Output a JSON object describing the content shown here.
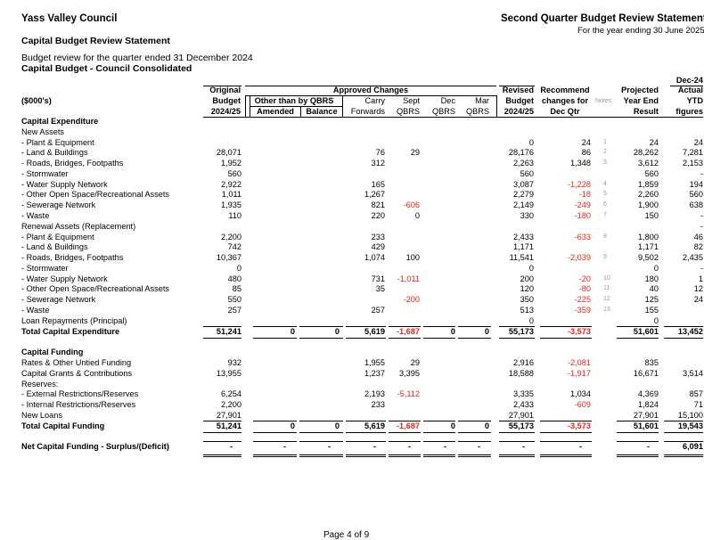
{
  "header": {
    "council": "Yass Valley Council",
    "statement_title": "Second Quarter Budget Review Statement",
    "year_ending": "For the year ending 30 June 2025",
    "section_title": "Capital Budget Review Statement",
    "quarter_text": "Budget review for the quarter ended 31 December 2024",
    "budget_name": "Capital Budget - Council Consolidated"
  },
  "columns": {
    "units": "($000's)",
    "original": [
      "Original",
      "Budget",
      "2024/25"
    ],
    "approved_changes": "Approved Changes",
    "other_than_qbrs": "Other than by QBRS",
    "amended": "Amended",
    "balance": "Balance",
    "carry": [
      "Carry",
      "Forwards"
    ],
    "sept": [
      "Sept",
      "QBRS"
    ],
    "dec": [
      "Dec",
      "QBRS"
    ],
    "mar": [
      "Mar",
      "QBRS"
    ],
    "revised": [
      "Revised",
      "Budget",
      "2024/25"
    ],
    "recommend": [
      "Recommend",
      "changes for",
      "Dec Qtr"
    ],
    "notes": "Notes",
    "projected": [
      "Projected",
      "Year End",
      "Result"
    ],
    "actual": [
      "Dec-24",
      "Actual",
      "YTD",
      "figures"
    ]
  },
  "rows": [
    {
      "label": "Capital Expenditure",
      "type": "section"
    },
    {
      "label": "New Assets",
      "type": "sub"
    },
    {
      "label": "- Plant & Equipment",
      "revised": "0",
      "recommend": "24",
      "note": "1",
      "projected": "24",
      "actual": "24"
    },
    {
      "label": "- Land & Buildings",
      "original": "28,071",
      "carry": "76",
      "sept": "29",
      "revised": "28,176",
      "recommend": "86",
      "note": "2",
      "projected": "28,262",
      "actual": "7,281"
    },
    {
      "label": "- Roads, Bridges, Footpaths",
      "original": "1,952",
      "carry": "312",
      "revised": "2,263",
      "recommend": "1,348",
      "note": "3",
      "projected": "3,612",
      "actual": "2,153"
    },
    {
      "label": "- Stormwater",
      "original": "560",
      "revised": "560",
      "projected": "560",
      "actual": "-"
    },
    {
      "label": "- Water Supply Network",
      "original": "2,922",
      "carry": "165",
      "revised": "3,087",
      "recommend": "-1,228",
      "note": "4",
      "projected": "1,859",
      "actual": "194"
    },
    {
      "label": "- Other Open Space/Recreational Assets",
      "original": "1,011",
      "carry": "1,267",
      "revised": "2,279",
      "recommend": "-18",
      "note": "5",
      "projected": "2,260",
      "actual": "560"
    },
    {
      "label": "- Sewerage Network",
      "original": "1,935",
      "carry": "821",
      "sept": "-606",
      "revised": "2,149",
      "recommend": "-249",
      "note": "6",
      "projected": "1,900",
      "actual": "638"
    },
    {
      "label": "- Waste",
      "original": "110",
      "carry": "220",
      "sept": "0",
      "revised": "330",
      "recommend": "-180",
      "note": "7",
      "projected": "150",
      "actual": "-"
    },
    {
      "label": "Renewal Assets (Replacement)",
      "type": "sub",
      "actual": "-"
    },
    {
      "label": "- Plant & Equipment",
      "original": "2,200",
      "carry": "233",
      "revised": "2,433",
      "recommend": "-633",
      "note": "8",
      "projected": "1,800",
      "actual": "46"
    },
    {
      "label": "- Land & Buildings",
      "original": "742",
      "carry": "429",
      "revised": "1,171",
      "projected": "1,171",
      "actual": "82"
    },
    {
      "label": "- Roads, Bridges, Footpaths",
      "original": "10,367",
      "carry": "1,074",
      "sept": "100",
      "revised": "11,541",
      "recommend": "-2,039",
      "note": "9",
      "projected": "9,502",
      "actual": "2,435"
    },
    {
      "label": "- Stormwater",
      "original": "0",
      "revised": "0",
      "projected": "0",
      "actual": "-"
    },
    {
      "label": "- Water Supply Network",
      "original": "480",
      "carry": "731",
      "sept": "-1,011",
      "revised": "200",
      "recommend": "-20",
      "note": "10",
      "projected": "180",
      "actual": "1"
    },
    {
      "label": "- Other Open Space/Recreational Assets",
      "original": "85",
      "carry": "35",
      "revised": "120",
      "recommend": "-80",
      "note": "11",
      "projected": "40",
      "actual": "12"
    },
    {
      "label": "- Sewerage Network",
      "original": "550",
      "sept": "-200",
      "revised": "350",
      "recommend": "-225",
      "note": "12",
      "projected": "125",
      "actual": "24"
    },
    {
      "label": "- Waste",
      "original": "257",
      "carry": "257",
      "revised": "513",
      "recommend": "-359",
      "note": "13",
      "projected": "155"
    },
    {
      "label": "Loan Repayments (Principal)",
      "type": "sub",
      "revised": "0",
      "projected": "0"
    },
    {
      "label": "Total Capital Expenditure",
      "type": "total",
      "original": "51,241",
      "amended": "0",
      "balance": "0",
      "carry": "5,619",
      "sept": "-1,687",
      "dec": "0",
      "mar": "0",
      "revised": "55,173",
      "recommend": "-3,573",
      "projected": "51,601",
      "actual": "13,452"
    },
    {
      "type": "blank"
    },
    {
      "label": "Capital Funding",
      "type": "section"
    },
    {
      "label": "Rates & Other Untied Funding",
      "type": "sub",
      "original": "932",
      "carry": "1,955",
      "sept": "29",
      "revised": "2,916",
      "recommend": "-2,081",
      "projected": "835"
    },
    {
      "label": "Capital Grants & Contributions",
      "type": "sub",
      "original": "13,955",
      "carry": "1,237",
      "sept": "3,395",
      "revised": "18,588",
      "recommend": "-1,917",
      "projected": "16,671",
      "actual": "3,514"
    },
    {
      "label": "Reserves:",
      "type": "sub"
    },
    {
      "label": "- External Restrictions/Reserves",
      "original": "6,254",
      "carry": "2,193",
      "sept": "-5,112",
      "revised": "3,335",
      "recommend": "1,034",
      "projected": "4,369",
      "actual": "857"
    },
    {
      "label": "- Internal Restrictions/Reserves",
      "original": "2,200",
      "carry": "233",
      "revised": "2,433",
      "recommend": "-609",
      "projected": "1,824",
      "actual": "71"
    },
    {
      "label": "New Loans",
      "type": "sub",
      "original": "27,901",
      "revised": "27,901",
      "projected": "27,901",
      "actual": "15,100"
    },
    {
      "label": "Total Capital Funding",
      "type": "total",
      "original": "51,241",
      "amended": "0",
      "balance": "0",
      "carry": "5,619",
      "sept": "-1,687",
      "dec": "0",
      "mar": "0",
      "revised": "55,173",
      "recommend": "-3,573",
      "projected": "51,601",
      "actual": "19,543"
    },
    {
      "type": "blank"
    },
    {
      "label": "Net Capital Funding - Surplus/(Deficit)",
      "type": "net",
      "original": "-",
      "amended": "-",
      "balance": "-",
      "carry": "-",
      "sept": "-",
      "dec": "-",
      "mar": "-",
      "revised": "-",
      "recommend": "-",
      "projected": "-",
      "actual": "6,091"
    }
  ],
  "footer": {
    "page": "Page 4 of 9"
  },
  "colors": {
    "negative": "#e8261c",
    "notes": "#9a9a9a"
  }
}
